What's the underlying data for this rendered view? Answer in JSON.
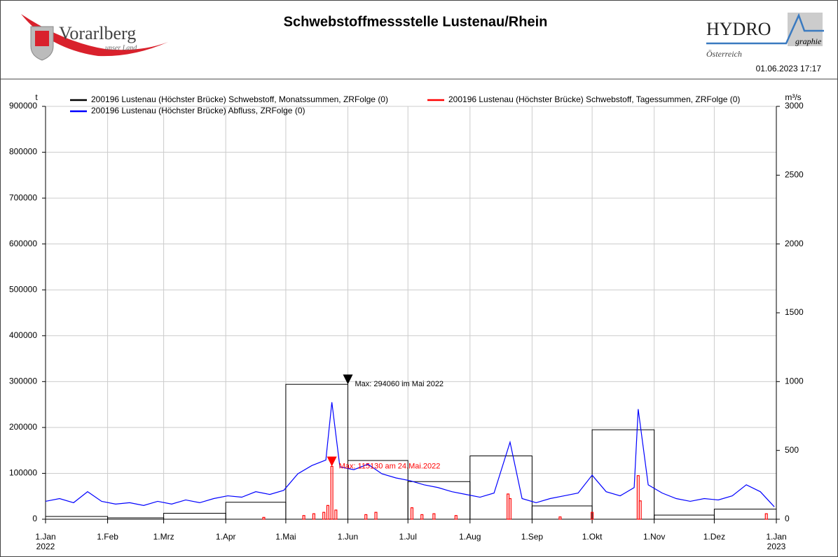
{
  "header": {
    "logo_left": "Vorarlberg",
    "logo_left_sub": "unser Land",
    "logo_right": "HYDRO",
    "logo_right_sub": "graphie",
    "logo_right_country": "Österreich",
    "timestamp": "01.06.2023 17:17"
  },
  "chart_data": {
    "type": "line",
    "title": "Schwebstoffmessstelle Lustenau/Rhein",
    "y_label": "t",
    "y2_label": "m³/s",
    "xlim": [
      "2022-01-01",
      "2023-01-01"
    ],
    "xticks": [
      {
        "value": "2022-01-01",
        "label": "1.Jan"
      },
      {
        "value": "2022-02-01",
        "label": "1.Feb"
      },
      {
        "value": "2022-03-01",
        "label": "1.Mrz"
      },
      {
        "value": "2022-04-01",
        "label": "1.Apr"
      },
      {
        "value": "2022-05-01",
        "label": "1.Mai"
      },
      {
        "value": "2022-06-01",
        "label": "1.Jun"
      },
      {
        "value": "2022-07-01",
        "label": "1.Jul"
      },
      {
        "value": "2022-08-01",
        "label": "1.Aug"
      },
      {
        "value": "2022-09-01",
        "label": "1.Sep"
      },
      {
        "value": "2022-10-01",
        "label": "1.Okt"
      },
      {
        "value": "2022-11-01",
        "label": "1.Nov"
      },
      {
        "value": "2022-12-01",
        "label": "1.Dez"
      },
      {
        "value": "2023-01-01",
        "label": "1.Jan"
      }
    ],
    "xtick_years": [
      {
        "value": "2022-01-01",
        "label": "2022"
      },
      {
        "value": "2023-01-01",
        "label": "2023"
      }
    ],
    "ylim": [
      0,
      900000
    ],
    "yticks": [
      0,
      100000,
      200000,
      300000,
      400000,
      500000,
      600000,
      700000,
      800000,
      900000
    ],
    "y2lim": [
      0,
      3000
    ],
    "y2ticks": [
      0,
      500,
      1000,
      1500,
      2000,
      2500,
      3000
    ],
    "grid": true,
    "series": [
      {
        "name": "200196 Lustenau (Höchster Brücke)  Schwebstoff, Monatssummen, ZRFolge (0)",
        "color": "#000000",
        "kind": "step",
        "x": [
          "2022-01-01",
          "2022-02-01",
          "2022-03-01",
          "2022-04-01",
          "2022-05-01",
          "2022-06-01",
          "2022-07-01",
          "2022-08-01",
          "2022-09-01",
          "2022-10-01",
          "2022-11-01",
          "2022-12-01"
        ],
        "values": [
          6000,
          3000,
          13000,
          37000,
          294060,
          128000,
          82000,
          138000,
          29000,
          195000,
          9000,
          22000
        ]
      },
      {
        "name": "200196 Lustenau (Höchster Brücke)  Schwebstoff, Tagessummen, ZRFolge (0)",
        "color": "#ff0000",
        "kind": "daily",
        "x": [
          "2022-04-20",
          "2022-05-10",
          "2022-05-15",
          "2022-05-20",
          "2022-05-22",
          "2022-05-24",
          "2022-05-26",
          "2022-06-10",
          "2022-06-15",
          "2022-07-03",
          "2022-07-08",
          "2022-07-14",
          "2022-07-25",
          "2022-08-20",
          "2022-08-21",
          "2022-09-15",
          "2022-10-01",
          "2022-10-24",
          "2022-10-25",
          "2022-12-27"
        ],
        "values": [
          4000,
          8000,
          12000,
          15000,
          30000,
          115130,
          20000,
          10000,
          15000,
          25000,
          10000,
          12000,
          8000,
          55000,
          45000,
          5000,
          15000,
          95000,
          40000,
          12000
        ]
      },
      {
        "name": "200196 Lustenau (Höchster Brücke)  Abfluss, ZRFolge (0)",
        "color": "#0000ff",
        "kind": "line",
        "axis": "y2",
        "x": [
          "2022-01-01",
          "2022-01-08",
          "2022-01-15",
          "2022-01-22",
          "2022-01-29",
          "2022-02-05",
          "2022-02-12",
          "2022-02-19",
          "2022-02-26",
          "2022-03-05",
          "2022-03-12",
          "2022-03-19",
          "2022-03-26",
          "2022-04-02",
          "2022-04-09",
          "2022-04-16",
          "2022-04-23",
          "2022-04-30",
          "2022-05-07",
          "2022-05-14",
          "2022-05-21",
          "2022-05-24",
          "2022-05-28",
          "2022-06-04",
          "2022-06-11",
          "2022-06-18",
          "2022-06-25",
          "2022-07-02",
          "2022-07-09",
          "2022-07-16",
          "2022-07-23",
          "2022-07-30",
          "2022-08-06",
          "2022-08-13",
          "2022-08-21",
          "2022-08-27",
          "2022-09-03",
          "2022-09-10",
          "2022-09-17",
          "2022-09-24",
          "2022-10-01",
          "2022-10-08",
          "2022-10-15",
          "2022-10-22",
          "2022-10-24",
          "2022-10-29",
          "2022-11-05",
          "2022-11-12",
          "2022-11-19",
          "2022-11-26",
          "2022-12-03",
          "2022-12-10",
          "2022-12-17",
          "2022-12-24",
          "2022-12-31"
        ],
        "values": [
          130,
          150,
          120,
          200,
          130,
          110,
          120,
          100,
          130,
          110,
          140,
          120,
          150,
          170,
          160,
          200,
          180,
          210,
          330,
          390,
          430,
          850,
          380,
          360,
          400,
          330,
          300,
          280,
          250,
          230,
          200,
          180,
          160,
          190,
          560,
          150,
          120,
          150,
          170,
          190,
          320,
          200,
          170,
          230,
          800,
          250,
          190,
          150,
          130,
          150,
          140,
          170,
          250,
          200,
          90
        ]
      }
    ],
    "annotations": [
      {
        "text": "Max: 294060   im Mai 2022",
        "x": "2022-06-01",
        "y": 294060,
        "color": "#000000"
      },
      {
        "text": "Max: 115130   am 24.Mai.2022",
        "x": "2022-05-24",
        "y": 115130,
        "color": "#ff0000"
      }
    ]
  }
}
